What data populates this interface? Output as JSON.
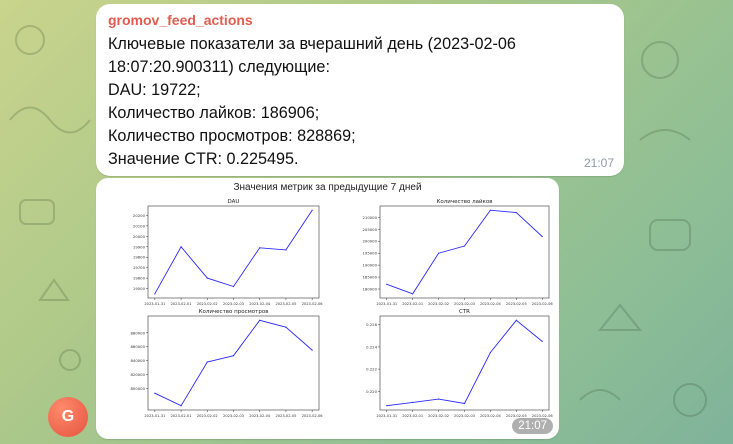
{
  "message": {
    "sender": "gromov_feed_actions",
    "lines": [
      "Ключевые показатели за вчерашний день (2023-02-06",
      "18:07:20.900311) следующие:",
      "DAU: 19722;",
      "Количество лайков: 186906;",
      "Количество просмотров: 828869;",
      "Значение CTR: 0.225495."
    ],
    "time": "21:07"
  },
  "image_message": {
    "time": "21:07",
    "figure_title": "Значения метрик за предыдущие 7 дней"
  },
  "avatar": {
    "letter": "G",
    "color": "#e4533f"
  },
  "colors": {
    "sender": "#e25c4f",
    "line": "#2a2aff"
  },
  "chart_data": [
    {
      "type": "line",
      "title": "DAU",
      "x": [
        "2023-01-31",
        "2023-02-01",
        "2023-02-02",
        "2023-02-03",
        "2023-02-04",
        "2023-02-05",
        "2023-02-06"
      ],
      "values": [
        19450,
        19900,
        19600,
        19520,
        19890,
        19870,
        20250
      ],
      "yticks": [
        "19500",
        "19600",
        "19700",
        "19800",
        "19900",
        "20000",
        "20100",
        "20200"
      ],
      "ylim": [
        19450,
        20250
      ]
    },
    {
      "type": "line",
      "title": "Количество лайков",
      "x": [
        "2023-01-31",
        "2023-02-01",
        "2023-02-02",
        "2023-02-03",
        "2023-02-04",
        "2023-02-05",
        "2023-02-06"
      ],
      "values": [
        182000,
        178000,
        195000,
        198000,
        213000,
        212000,
        202000
      ],
      "yticks": [
        "180000",
        "185000",
        "190000",
        "195000",
        "200000",
        "205000",
        "210000"
      ],
      "ylim": [
        178000,
        213000
      ]
    },
    {
      "type": "line",
      "title": "Количество просмотров",
      "x": [
        "2023-01-31",
        "2023-02-01",
        "2023-02-02",
        "2023-02-03",
        "2023-02-04",
        "2023-02-05",
        "2023-02-06"
      ],
      "values": [
        793000,
        775000,
        838000,
        847000,
        898000,
        888000,
        855000
      ],
      "yticks": [
        "800000",
        "820000",
        "840000",
        "860000",
        "880000"
      ],
      "ylim": [
        775000,
        898000
      ]
    },
    {
      "type": "line",
      "title": "CTR",
      "x": [
        "2023-01-31",
        "2023-02-01",
        "2023-02-02",
        "2023-02-03",
        "2023-02-04",
        "2023-02-05",
        "2023-02-06"
      ],
      "values": [
        0.2187,
        0.219,
        0.2193,
        0.2189,
        0.2235,
        0.2264,
        0.2245
      ],
      "yticks": [
        "0.220",
        "0.222",
        "0.224",
        "0.226"
      ],
      "ylim": [
        0.2187,
        0.2264
      ]
    }
  ]
}
